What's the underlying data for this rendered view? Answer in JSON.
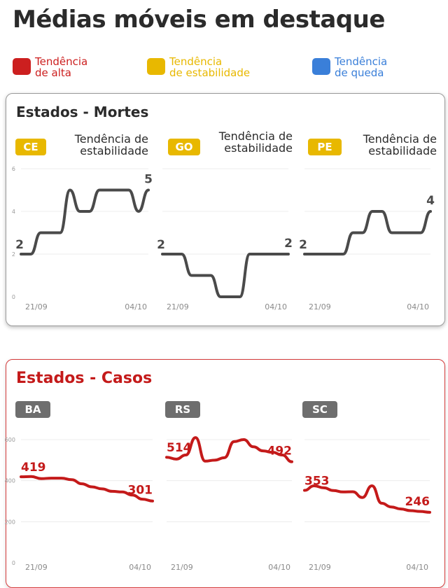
{
  "page": {
    "title": "Médias móveis em destaque"
  },
  "legend": [
    {
      "label": "Tendência\nde alta",
      "color": "#cc1f1f"
    },
    {
      "label": "Tendência\nde estabilidade",
      "color": "#e8b800"
    },
    {
      "label": "Tendência\nde queda",
      "color": "#3a7fd9"
    }
  ],
  "deaths": {
    "title": "Estados - Mortes",
    "badge_color": "#e8b800",
    "line_color": "#4a4a4a",
    "states": [
      {
        "code": "CE",
        "trend": "Tendência de\nestabilidade"
      },
      {
        "code": "GO",
        "trend": "Tendência de\nestabilidade"
      },
      {
        "code": "PE",
        "trend": "Tendência de\nestabilidade"
      }
    ]
  },
  "cases": {
    "title": "Estados - Casos",
    "badge_color": "#6e6e6e",
    "line_color": "#c41a1a",
    "states": [
      {
        "code": "BA"
      },
      {
        "code": "RS"
      },
      {
        "code": "SC"
      }
    ]
  },
  "chart_data": [
    {
      "type": "line",
      "title": "CE",
      "x": [
        "21/09",
        "22/09",
        "23/09",
        "24/09",
        "25/09",
        "26/09",
        "27/09",
        "28/09",
        "29/09",
        "30/09",
        "01/10",
        "02/10",
        "03/10",
        "04/10"
      ],
      "values": [
        2,
        2,
        3,
        3,
        3,
        5,
        4,
        4,
        5,
        5,
        5,
        5,
        4,
        5
      ],
      "start_label": "2",
      "end_label": "5",
      "x_ticks": [
        "21/09",
        "04/10"
      ],
      "y_ticks": [
        "0",
        "2",
        "4",
        "6"
      ],
      "ylim": [
        0,
        6
      ]
    },
    {
      "type": "line",
      "title": "GO",
      "x": [
        "21/09",
        "22/09",
        "23/09",
        "24/09",
        "25/09",
        "26/09",
        "27/09",
        "28/09",
        "29/09",
        "30/09",
        "01/10",
        "02/10",
        "03/10",
        "04/10"
      ],
      "values": [
        2,
        2,
        2,
        1,
        1,
        1,
        0,
        0,
        0,
        2,
        2,
        2,
        2,
        2
      ],
      "start_label": "2",
      "end_label": "2",
      "x_ticks": [
        "21/09",
        "04/10"
      ],
      "y_ticks": [],
      "ylim": [
        0,
        6
      ]
    },
    {
      "type": "line",
      "title": "PE",
      "x": [
        "21/09",
        "22/09",
        "23/09",
        "24/09",
        "25/09",
        "26/09",
        "27/09",
        "28/09",
        "29/09",
        "30/09",
        "01/10",
        "02/10",
        "03/10",
        "04/10"
      ],
      "values": [
        2,
        2,
        2,
        2,
        2,
        3,
        3,
        4,
        4,
        3,
        3,
        3,
        3,
        4
      ],
      "start_label": "2",
      "end_label": "4",
      "x_ticks": [
        "21/09",
        "04/10"
      ],
      "y_ticks": [],
      "ylim": [
        0,
        6
      ]
    },
    {
      "type": "line",
      "title": "BA",
      "x": [
        "21/09",
        "22/09",
        "23/09",
        "24/09",
        "25/09",
        "26/09",
        "27/09",
        "28/09",
        "29/09",
        "30/09",
        "01/10",
        "02/10",
        "03/10",
        "04/10"
      ],
      "values": [
        419,
        420,
        410,
        412,
        412,
        405,
        385,
        370,
        360,
        348,
        345,
        330,
        310,
        301
      ],
      "start_label": "419",
      "end_label": "301",
      "x_ticks": [
        "21/09",
        "04/10"
      ],
      "y_ticks": [
        "0",
        "200",
        "400",
        "600"
      ],
      "ylim": [
        0,
        600
      ]
    },
    {
      "type": "line",
      "title": "RS",
      "x": [
        "21/09",
        "22/09",
        "23/09",
        "24/09",
        "25/09",
        "26/09",
        "27/09",
        "28/09",
        "29/09",
        "30/09",
        "01/10",
        "02/10",
        "03/10",
        "04/10"
      ],
      "values": [
        514,
        505,
        525,
        610,
        495,
        500,
        512,
        590,
        600,
        565,
        545,
        538,
        525,
        492
      ],
      "start_label": "514",
      "end_label": "492",
      "x_ticks": [
        "21/09",
        "04/10"
      ],
      "y_ticks": [],
      "ylim": [
        0,
        600
      ]
    },
    {
      "type": "line",
      "title": "SC",
      "x": [
        "21/09",
        "22/09",
        "23/09",
        "24/09",
        "25/09",
        "26/09",
        "27/09",
        "28/09",
        "29/09",
        "30/09",
        "01/10",
        "02/10",
        "03/10",
        "04/10"
      ],
      "values": [
        353,
        375,
        365,
        352,
        345,
        346,
        318,
        375,
        290,
        272,
        262,
        254,
        250,
        246
      ],
      "start_label": "353",
      "end_label": "246",
      "x_ticks": [
        "21/09",
        "04/10"
      ],
      "y_ticks": [],
      "ylim": [
        0,
        600
      ]
    }
  ]
}
